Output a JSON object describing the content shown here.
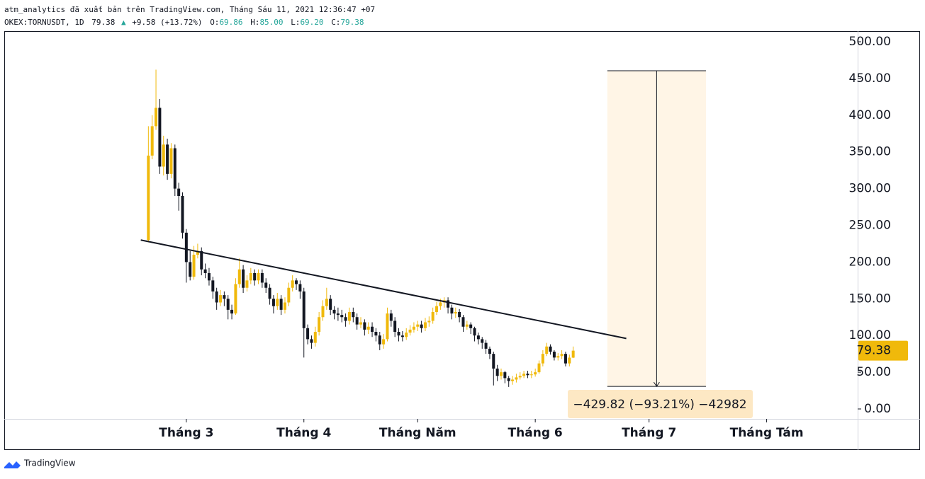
{
  "header": {
    "line1": "atm_analytics đã xuất bản trên TradingView.com, Tháng Sáu 11, 2021 12:36:47 +07",
    "symbol": "OKEX:TORNUSDT, 1D",
    "last": "79.38",
    "change": "+9.58 (+13.72%)",
    "o_label": "O:",
    "o": "69.86",
    "h_label": "H:",
    "h": "85.00",
    "l_label": "L:",
    "l": "69.20",
    "c_label": "C:",
    "c": "79.38"
  },
  "footer": "TradingView",
  "chart_data": {
    "type": "candlestick",
    "up_color": "#f0b90b",
    "down_color": "#131722",
    "xlim": [
      -38,
      187
    ],
    "ylim": [
      0,
      500
    ],
    "xticks": [
      {
        "value": 10,
        "label": "Tháng 3"
      },
      {
        "value": 41,
        "label": "Tháng 4"
      },
      {
        "value": 71,
        "label": "Tháng Năm"
      },
      {
        "value": 102,
        "label": "Tháng 6"
      },
      {
        "value": 132,
        "label": "Tháng 7"
      },
      {
        "value": 163,
        "label": "Tháng Tám"
      }
    ],
    "yticks": [
      {
        "value": 0,
        "label": "0.00"
      },
      {
        "value": 50,
        "label": "50.00"
      },
      {
        "value": 100,
        "label": "100.00"
      },
      {
        "value": 150,
        "label": "150.00"
      },
      {
        "value": 200,
        "label": "200.00"
      },
      {
        "value": 250,
        "label": "250.00"
      },
      {
        "value": 300,
        "label": "300.00"
      },
      {
        "value": 350,
        "label": "350.00"
      },
      {
        "value": 400,
        "label": "400.00"
      },
      {
        "value": 450,
        "label": "450.00"
      },
      {
        "value": 500,
        "label": "500.00"
      }
    ],
    "open": [
      230,
      345,
      385,
      410,
      330,
      360,
      320,
      355,
      300,
      290,
      240,
      200,
      180,
      210,
      215,
      190,
      185,
      175,
      160,
      145,
      155,
      150,
      135,
      130,
      170,
      190,
      165,
      175,
      185,
      175,
      185,
      172,
      165,
      150,
      140,
      150,
      135,
      145,
      165,
      175,
      170,
      160,
      110,
      95,
      90,
      105,
      125,
      140,
      150,
      135,
      130,
      128,
      125,
      120,
      132,
      125,
      115,
      118,
      108,
      112,
      105,
      100,
      88,
      95,
      130,
      120,
      105,
      100,
      98,
      104,
      108,
      112,
      115,
      110,
      118,
      120,
      132,
      140,
      145,
      148,
      138,
      130,
      132,
      125,
      112,
      115,
      110,
      100,
      95,
      90,
      82,
      75,
      55,
      45,
      50,
      42,
      38,
      40,
      43,
      45,
      48,
      46,
      47,
      50,
      62,
      75,
      85,
      78,
      70,
      72,
      75,
      62,
      69.86
    ],
    "high": [
      385,
      400,
      462,
      422,
      372,
      368,
      362,
      360,
      308,
      295,
      245,
      215,
      222,
      225,
      220,
      198,
      192,
      180,
      165,
      162,
      160,
      155,
      142,
      178,
      205,
      196,
      182,
      192,
      190,
      190,
      190,
      178,
      170,
      155,
      158,
      155,
      152,
      172,
      182,
      178,
      175,
      165,
      115,
      100,
      112,
      132,
      148,
      165,
      155,
      140,
      138,
      135,
      130,
      138,
      138,
      130,
      125,
      122,
      118,
      118,
      110,
      105,
      102,
      138,
      135,
      125,
      110,
      106,
      110,
      114,
      118,
      120,
      120,
      124,
      126,
      138,
      146,
      150,
      152,
      152,
      142,
      138,
      136,
      128,
      120,
      118,
      112,
      104,
      98,
      94,
      85,
      78,
      60,
      55,
      52,
      45,
      45,
      48,
      50,
      52,
      52,
      52,
      55,
      66,
      80,
      90,
      88,
      80,
      76,
      80,
      78,
      74,
      85
    ],
    "low": [
      228,
      340,
      380,
      320,
      318,
      312,
      314,
      290,
      270,
      232,
      172,
      175,
      176,
      205,
      182,
      178,
      168,
      150,
      135,
      140,
      140,
      122,
      122,
      128,
      165,
      158,
      160,
      170,
      168,
      170,
      165,
      158,
      142,
      130,
      135,
      128,
      130,
      140,
      160,
      162,
      150,
      70,
      88,
      82,
      85,
      100,
      120,
      135,
      128,
      122,
      120,
      118,
      112,
      115,
      118,
      108,
      110,
      100,
      102,
      98,
      92,
      80,
      82,
      92,
      112,
      98,
      92,
      92,
      94,
      100,
      104,
      106,
      104,
      106,
      112,
      116,
      128,
      135,
      138,
      130,
      122,
      124,
      118,
      105,
      108,
      102,
      92,
      88,
      82,
      75,
      68,
      32,
      38,
      40,
      35,
      30,
      33,
      36,
      40,
      42,
      42,
      42,
      44,
      48,
      58,
      72,
      74,
      66,
      66,
      68,
      58,
      58,
      69.2
    ],
    "close": [
      345,
      385,
      410,
      330,
      360,
      320,
      355,
      300,
      290,
      240,
      200,
      180,
      210,
      215,
      190,
      185,
      175,
      160,
      145,
      155,
      150,
      135,
      130,
      170,
      190,
      165,
      175,
      185,
      175,
      185,
      172,
      165,
      150,
      140,
      150,
      135,
      145,
      165,
      175,
      170,
      160,
      110,
      95,
      90,
      105,
      125,
      140,
      150,
      135,
      130,
      128,
      125,
      120,
      132,
      125,
      115,
      118,
      108,
      112,
      105,
      100,
      88,
      95,
      130,
      120,
      105,
      100,
      98,
      104,
      108,
      112,
      115,
      110,
      118,
      120,
      132,
      140,
      145,
      148,
      138,
      130,
      132,
      125,
      112,
      115,
      110,
      100,
      95,
      90,
      82,
      75,
      55,
      45,
      50,
      42,
      38,
      40,
      43,
      45,
      48,
      46,
      47,
      50,
      62,
      75,
      85,
      78,
      70,
      72,
      75,
      62,
      69.86,
      79.38
    ],
    "price_label": {
      "value": 79.38,
      "label": "79.38"
    },
    "trendline": {
      "x": [
        -2,
        126
      ],
      "y": [
        230,
        96
      ]
    },
    "measure": {
      "x": [
        121,
        147
      ],
      "y": [
        460.52,
        30.7
      ],
      "label": "−429.82 (−93.21%) −42982"
    }
  }
}
